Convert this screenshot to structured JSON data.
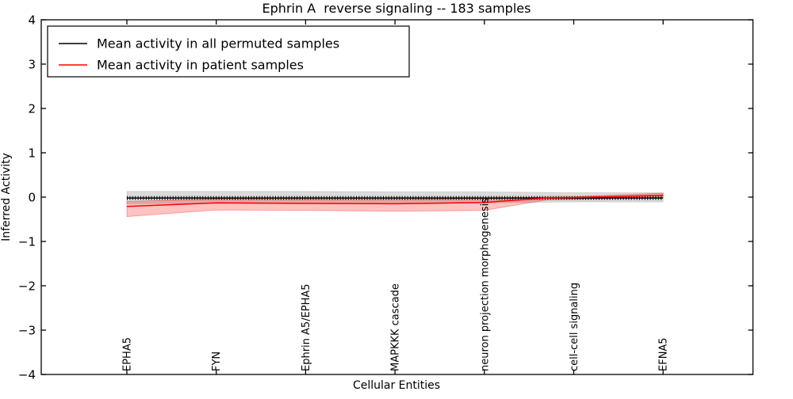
{
  "figure": {
    "title": "Ephrin A  reverse signaling -- 183 samples",
    "xlabel": "Cellular Entities",
    "ylabel": "Inferred Activity"
  },
  "chart_data": {
    "type": "line",
    "title": "Ephrin A  reverse signaling -- 183 samples",
    "xlabel": "Cellular Entities",
    "ylabel": "Inferred Activity",
    "ylim": [
      -4,
      4
    ],
    "yticks": [
      4,
      3,
      2,
      1,
      0,
      -1,
      -2,
      -3,
      -4
    ],
    "x_tick_labels": [
      "EPHA5",
      "FYN",
      "Ephrin A5/EPHA5",
      "MAPKKK cascade",
      "neuron projection morphogenesis",
      "cell-cell signaling",
      "EFNA5"
    ],
    "grid": false,
    "legend_position": "upper left",
    "legend": [
      {
        "label": "Mean activity in all permuted samples",
        "color": "#000000"
      },
      {
        "label": "Mean activity in patient samples",
        "color": "#ff0000"
      }
    ],
    "series": [
      {
        "name": "Mean activity in all permuted samples",
        "color": "#000000",
        "marker": "tick",
        "x": [
          0,
          1,
          2,
          3,
          4,
          5,
          6
        ],
        "values": [
          -0.02,
          -0.02,
          -0.02,
          -0.02,
          -0.02,
          -0.02,
          -0.02
        ],
        "band_top": [
          0.13,
          0.13,
          0.13,
          0.12,
          0.12,
          0.1,
          0.1
        ],
        "band_bottom": [
          -0.15,
          -0.14,
          -0.14,
          -0.14,
          -0.13,
          -0.11,
          -0.11
        ],
        "band_fill": "rgba(0,0,0,0.14)",
        "band_edge": "rgba(0,0,0,0.10)"
      },
      {
        "name": "Mean activity in patient samples",
        "color": "#ff0000",
        "marker": "none",
        "x": [
          0,
          1,
          2,
          3,
          4,
          4.7,
          5,
          6
        ],
        "values": [
          -0.21,
          -0.13,
          -0.14,
          -0.15,
          -0.12,
          -0.02,
          -0.01,
          0.04
        ],
        "band_top": [
          -0.1,
          -0.04,
          -0.05,
          -0.05,
          -0.03,
          0.0,
          0.01,
          0.09
        ],
        "band_bottom": [
          -0.44,
          -0.29,
          -0.3,
          -0.32,
          -0.3,
          -0.06,
          -0.05,
          -0.01
        ],
        "band_fill": "rgba(255,0,0,0.24)",
        "band_edge": "rgba(255,0,0,0.30)"
      }
    ]
  }
}
